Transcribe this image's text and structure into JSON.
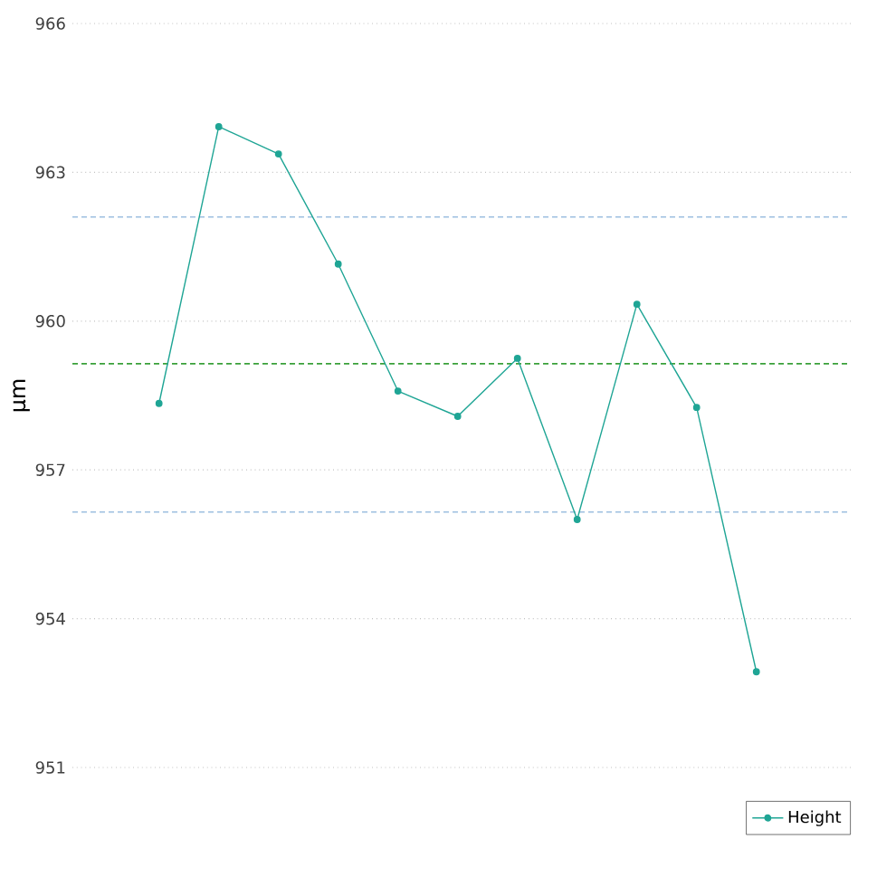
{
  "chart_data": {
    "type": "line",
    "ylabel": "µm",
    "categories": [
      null,
      null,
      null,
      null,
      null,
      null,
      null,
      null,
      null,
      null,
      null
    ],
    "series": [
      {
        "name": "Height",
        "color": "#1fa595",
        "values": [
          958.34,
          963.92,
          963.37,
          961.15,
          958.59,
          958.08,
          959.25,
          956.0,
          960.34,
          958.26,
          952.93
        ]
      }
    ],
    "ylim": [
      951,
      966
    ],
    "yticks": [
      951,
      954,
      957,
      960,
      963,
      966
    ],
    "tick_labels": "y",
    "grid": "y",
    "legend": "bottom right",
    "marker": "circle",
    "line_style": "solid",
    "ref_lines": [
      {
        "axis": "y",
        "value": 962.1,
        "color": "#9dbfe0",
        "line_style": "dashed"
      },
      {
        "axis": "y",
        "value": 959.14,
        "color": "#3aa03a",
        "line_style": "dashed"
      },
      {
        "axis": "y",
        "value": 956.15,
        "color": "#9dbfe0",
        "line_style": "dashed"
      }
    ]
  }
}
